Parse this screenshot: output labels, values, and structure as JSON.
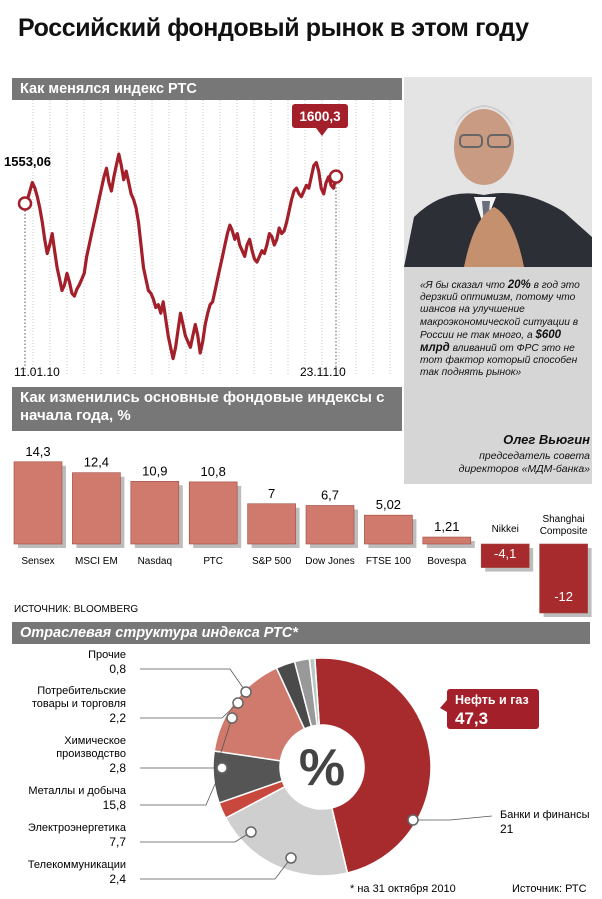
{
  "title": "Российский фондовый рынок в этом году",
  "colors": {
    "accent": "#a31f2a",
    "bar": "#cf7a6c",
    "bar_dark": "#a72a2c",
    "section": "#777777"
  },
  "chart_data": [
    {
      "type": "line",
      "title": "Как менялся индекс РТС",
      "start_label": "1553,06",
      "end_label": "1600,3",
      "x_start": "11.01.10",
      "x_end": "23.11.10",
      "series": [
        {
          "values": [
            1553.06,
            1560,
            1575,
            1590,
            1580,
            1565,
            1545,
            1520,
            1490,
            1465,
            1480,
            1500,
            1470,
            1440,
            1420,
            1400,
            1410,
            1430,
            1415,
            1395,
            1390,
            1402,
            1410,
            1420,
            1430,
            1460,
            1480,
            1500,
            1520,
            1540,
            1560,
            1580,
            1600,
            1615,
            1590,
            1575,
            1600,
            1620,
            1640,
            1620,
            1595,
            1610,
            1590,
            1570,
            1560,
            1545,
            1520,
            1480,
            1440,
            1420,
            1400,
            1395,
            1385,
            1370,
            1375,
            1360,
            1380,
            1350,
            1320,
            1300,
            1280,
            1300,
            1330,
            1360,
            1340,
            1320,
            1310,
            1300,
            1320,
            1340,
            1320,
            1290,
            1310,
            1340,
            1360,
            1375,
            1380,
            1400,
            1420,
            1440,
            1460,
            1480,
            1500,
            1515,
            1505,
            1490,
            1500,
            1480,
            1470,
            1460,
            1480,
            1490,
            1470,
            1455,
            1450,
            1460,
            1470,
            1465,
            1480,
            1500,
            1495,
            1480,
            1490,
            1510,
            1500,
            1505,
            1520,
            1540,
            1560,
            1575,
            1580,
            1570,
            1565,
            1575,
            1585,
            1580,
            1600,
            1620,
            1625,
            1610,
            1580,
            1570,
            1590,
            1600,
            1585,
            1580,
            1600.3
          ]
        }
      ]
    },
    {
      "type": "bar",
      "title": "Как изменились основные фондовые индексы с начала года, %",
      "categories": [
        "Sensex",
        "MSCI EM",
        "Nasdaq",
        "РТС",
        "S&P 500",
        "Dow Jones",
        "FTSE 100",
        "Bovespa",
        "Nikkei",
        "Shanghai Composite"
      ],
      "values": [
        14.3,
        12.4,
        10.9,
        10.8,
        7,
        6.7,
        5.02,
        1.21,
        -4.1,
        -12
      ],
      "value_labels": [
        "14,3",
        "12,4",
        "10,9",
        "10,8",
        "7",
        "6,7",
        "5,02",
        "1,21",
        "-4,1",
        "-12"
      ],
      "source": "ИСТОЧНИК: BLOOMBERG"
    },
    {
      "type": "pie",
      "title": "Отраслевая структура индекса РТС*",
      "center_symbol": "%",
      "slices": [
        {
          "name": "Нефть и газ",
          "value": 47.3,
          "label": "47,3",
          "color": "#a72a2c"
        },
        {
          "name": "Банки и финансы",
          "value": 21,
          "label": "21",
          "color": "#cfcfcf"
        },
        {
          "name": "Телекоммуникации",
          "value": 2.4,
          "label": "2,4",
          "color": "#c8483e"
        },
        {
          "name": "Электроэнергетика",
          "value": 7.7,
          "label": "7,7",
          "color": "#555555"
        },
        {
          "name": "Металлы и добыча",
          "value": 15.8,
          "label": "15,8",
          "color": "#cf7a6c"
        },
        {
          "name": "Химическое производство",
          "value": 2.8,
          "label": "2,8",
          "color": "#4a4a4a"
        },
        {
          "name": "Потребительские товары и торговля",
          "value": 2.2,
          "label": "2,2",
          "color": "#999999"
        },
        {
          "name": "Прочие",
          "value": 0.8,
          "label": "0,8",
          "color": "#b8c8c4"
        }
      ],
      "footnote": "* на 31 октября 2010",
      "source": "Источник: РТС"
    }
  ],
  "quote": {
    "text_parts": [
      "«Я бы сказал что ",
      "20%",
      " в год это дерзкий оптимизм, потому что шансов на улучшение макроэкономической ситуации в России не так много, а ",
      "$600 млрд",
      " вливаний от ФРС это не тот фактор который способен так поднять рынок»"
    ],
    "name": "Олег Вьюгин",
    "role": "председатель совета директоров «МДМ-банка»"
  }
}
